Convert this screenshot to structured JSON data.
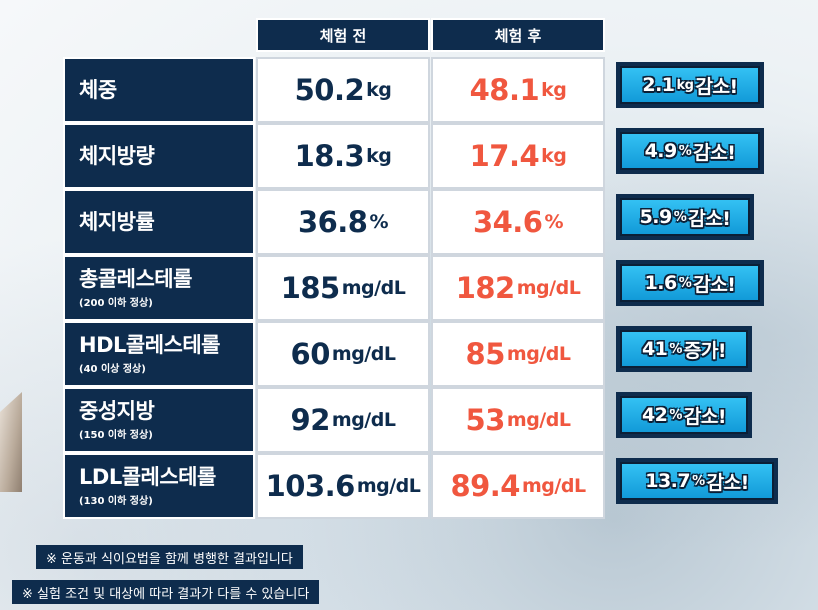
{
  "table": {
    "headers": {
      "before": "체험 전",
      "after": "체험 후"
    },
    "rows": [
      {
        "label": "체중",
        "sub": "",
        "before_num": "50.2",
        "before_unit": "kg",
        "after_num": "48.1",
        "after_unit": "kg",
        "badge_num": "2.1",
        "badge_unit": "kg",
        "badge_text": "감소!"
      },
      {
        "label": "체지방량",
        "sub": "",
        "before_num": "18.3",
        "before_unit": "kg",
        "after_num": "17.4",
        "after_unit": "kg",
        "badge_num": "4.9",
        "badge_unit": "%",
        "badge_text": "감소!"
      },
      {
        "label": "체지방률",
        "sub": "",
        "before_num": "36.8",
        "before_unit": "%",
        "after_num": "34.6",
        "after_unit": "%",
        "badge_num": "5.9",
        "badge_unit": "%",
        "badge_text": "감소!"
      },
      {
        "label": "총콜레스테롤",
        "sub": "(200 이하 정상)",
        "before_num": "185",
        "before_unit": "mg/dL",
        "after_num": "182",
        "after_unit": "mg/dL",
        "badge_num": "1.6",
        "badge_unit": "%",
        "badge_text": "감소!"
      },
      {
        "label": "HDL콜레스테롤",
        "sub": "(40 이상 정상)",
        "before_num": "60",
        "before_unit": "mg/dL",
        "after_num": "85",
        "after_unit": "mg/dL",
        "badge_num": "41",
        "badge_unit": "%",
        "badge_text": "증가!"
      },
      {
        "label": "중성지방",
        "sub": "(150 이하 정상)",
        "before_num": "92",
        "before_unit": "mg/dL",
        "after_num": "53",
        "after_unit": "mg/dL",
        "badge_num": "42",
        "badge_unit": "%",
        "badge_text": "감소!"
      },
      {
        "label": "LDL콜레스테롤",
        "sub": "(130 이하 정상)",
        "before_num": "103.6",
        "before_unit": "mg/dL",
        "after_num": "89.4",
        "after_unit": "mg/dL",
        "badge_num": "13.7",
        "badge_unit": "%",
        "badge_text": "감소!"
      }
    ]
  },
  "notes": [
    "※ 운동과 식이요법을 함께 병행한 결과입니다",
    "※ 실험 조건 및 대상에 따라 결과가 다를 수 있습니다"
  ],
  "colors": {
    "navy": "#0e2c4d",
    "after_value": "#f0573f",
    "badge_blue": "#23aee6"
  }
}
